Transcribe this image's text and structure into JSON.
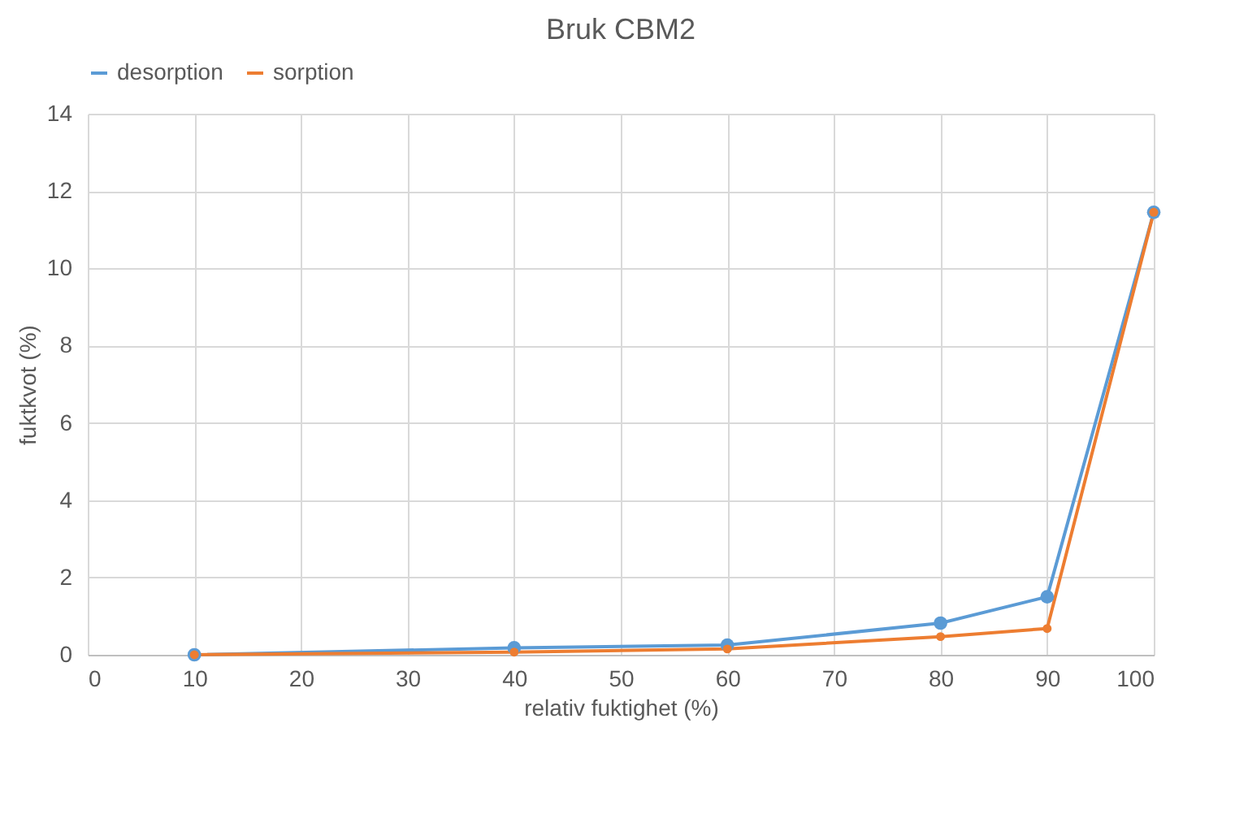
{
  "chart_data": {
    "type": "line",
    "title": "Bruk CBM2",
    "xlabel": "relativ fuktighet (%)",
    "ylabel": "fuktkvot (%)",
    "x": [
      10,
      40,
      60,
      80,
      90,
      100
    ],
    "series": [
      {
        "name": "desorption",
        "color": "#5b9bd5",
        "values": [
          0,
          0.18,
          0.25,
          0.82,
          1.5,
          11.45
        ]
      },
      {
        "name": "sorption",
        "color": "#ed7d31",
        "values": [
          0,
          0.07,
          0.15,
          0.47,
          0.68,
          11.45
        ]
      }
    ],
    "xlim": [
      0,
      100
    ],
    "xticks": [
      0,
      10,
      20,
      30,
      40,
      50,
      60,
      70,
      80,
      90,
      100
    ],
    "ylim": [
      0,
      14
    ],
    "yticks": [
      0,
      2,
      4,
      6,
      8,
      10,
      12,
      14
    ],
    "grid": true,
    "legend": "top",
    "marker": "circle",
    "line_style": "solid"
  }
}
